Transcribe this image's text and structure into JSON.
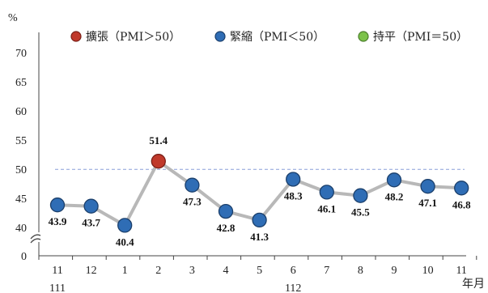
{
  "chart_data": {
    "type": "line",
    "title": "",
    "unit": "%",
    "x": [
      "11",
      "12",
      "1",
      "2",
      "3",
      "4",
      "5",
      "6",
      "7",
      "8",
      "9",
      "10",
      "11"
    ],
    "x_suffix": "年月",
    "year_labels": [
      {
        "label": "111",
        "at_index": 0
      },
      {
        "label": "112",
        "at_index": 7
      }
    ],
    "values": [
      43.9,
      43.7,
      40.4,
      51.4,
      47.3,
      42.8,
      41.3,
      48.3,
      46.1,
      45.5,
      48.2,
      47.1,
      46.8
    ],
    "data_labels": [
      "43.9",
      "43.7",
      "40.4",
      "51.4",
      "47.3",
      "42.8",
      "41.3",
      "48.3",
      "46.1",
      "45.5",
      "48.2",
      "47.1",
      "46.8"
    ],
    "y_ticks": [
      "0",
      "40",
      "45",
      "50",
      "55",
      "60",
      "65",
      "70"
    ],
    "y_tick_values": [
      0,
      40,
      45,
      50,
      55,
      60,
      65,
      70
    ],
    "ylim": [
      38,
      70
    ],
    "axis_break": true,
    "reference_line": {
      "value": 50,
      "style": "dashed",
      "color": "#8a9fd9"
    },
    "legend_position": "top",
    "legend": [
      {
        "text": "擴張（PMI＞50）",
        "color": "#c0392b"
      },
      {
        "text": "緊縮（PMI＜50）",
        "color": "#2f6db5"
      },
      {
        "text": "持平（PMI＝50）",
        "color": "#7cc24a"
      }
    ],
    "colors": {
      "expand": "#c0392b",
      "contract": "#2f6db5",
      "flat": "#7cc24a",
      "line": "#b8b8b8",
      "axis": "#444444"
    }
  }
}
